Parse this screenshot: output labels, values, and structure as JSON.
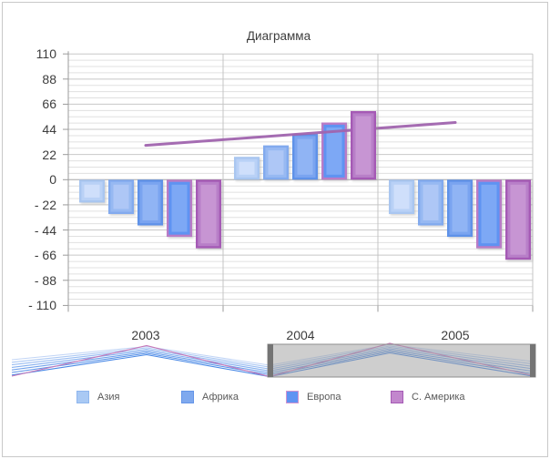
{
  "window": {
    "background": "#ffffff",
    "border_color": "#c9c9c9"
  },
  "chart_data": {
    "type": "bar",
    "title": "Диаграмма",
    "categories": [
      "2003",
      "2004",
      "2005"
    ],
    "y_ticks": [
      "110",
      "88",
      "66",
      "44",
      "22",
      "0",
      "- 22",
      "- 44",
      "- 66",
      "- 88",
      "- 110"
    ],
    "ylim": [
      -110,
      110
    ],
    "major_unit": 22,
    "minor_unit": 5.5,
    "grid": true,
    "legend_position": "bottom",
    "series": [
      {
        "name": "Азия",
        "type": "bar",
        "values": [
          -20,
          20,
          -30
        ],
        "fill": "#b9d1f6",
        "border": "#a9c6f0",
        "inner": "#cfdffb"
      },
      {
        "name": "Африка",
        "type": "bar",
        "values": [
          -30,
          30,
          -40
        ],
        "fill": "#97b9f2",
        "border": "#82aaee",
        "inner": "#aec7f6"
      },
      {
        "name": "",
        "type": "bar",
        "values": [
          -40,
          40,
          -50
        ],
        "fill": "#7aa4f0",
        "border": "#5f92e8",
        "inner": "#90b4f4"
      },
      {
        "name": "Европа",
        "type": "bar",
        "values": [
          -50,
          50,
          -60
        ],
        "fill": "#5f93f2",
        "border": "#b97bc6",
        "inner": "#7da8f5"
      },
      {
        "name": "С. Америка",
        "type": "bar",
        "values": [
          -60,
          60,
          -70
        ],
        "fill": "#b87fc8",
        "border": "#a55ab5",
        "inner": "#c795d3"
      }
    ],
    "trend_line": {
      "type": "line",
      "values": [
        30,
        40,
        50
      ],
      "color": "#a064ae",
      "width": 3
    }
  },
  "legend": {
    "items": [
      {
        "label": "Азия",
        "fill": "#a9c9f4",
        "border": "#8fb6ee"
      },
      {
        "label": "Африка",
        "fill": "#7fa9ee",
        "border": "#6495e8"
      },
      {
        "label": "Европа",
        "fill": "#5f93f2",
        "border": "#d393cf"
      },
      {
        "label": "С. Америка",
        "fill": "#c287cd",
        "border": "#a55ab5"
      }
    ]
  },
  "navigator": {
    "selected_categories": [
      "2004",
      "2005"
    ],
    "overlay_color": "#9e9e9e",
    "overlay_border": "#8f8f8f",
    "handle_color": "#747474",
    "line_colors": [
      "#c3d6f6",
      "#aecaf4",
      "#9abdf2",
      "#86b0ef",
      "#72a3ec",
      "#5e96e9",
      "#4a89e6"
    ],
    "accent_line_color": "#c878b8"
  }
}
